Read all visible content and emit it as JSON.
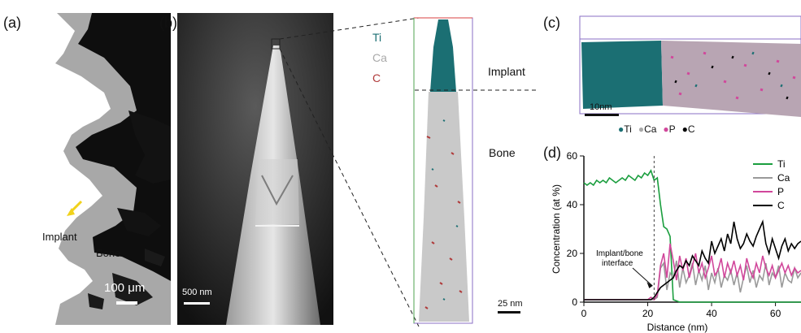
{
  "figure": {
    "panels": {
      "a": {
        "label": "(a)",
        "implant_label": "Implant",
        "bone_label": "Bone",
        "scale_bar": "100 μm"
      },
      "b": {
        "label": "(b)",
        "sem_scale_bar": "500 nm",
        "apt_scale_bar": "25 nm",
        "legend": [
          {
            "name": "Ti",
            "color": "#1b6f73"
          },
          {
            "name": "Ca",
            "color": "#a9a9a9"
          },
          {
            "name": "C",
            "color": "#b03a3a"
          }
        ],
        "implant_label": "Implant",
        "bone_label": "Bone"
      },
      "c": {
        "label": "(c)",
        "scale_bar": "10nm",
        "legend": [
          {
            "name": "Ti",
            "color": "#1b6f73"
          },
          {
            "name": "Ca",
            "color": "#a9a9a9"
          },
          {
            "name": "P",
            "color": "#d1479b"
          },
          {
            "name": "C",
            "color": "#000000"
          }
        ]
      },
      "d": {
        "label": "(d)"
      }
    }
  },
  "chart_data": {
    "type": "line",
    "title": "",
    "xlabel": "Distance (nm)",
    "ylabel": "Concentration (at %)",
    "xlim": [
      0,
      68
    ],
    "ylim": [
      0,
      60
    ],
    "xticks": [
      0,
      20,
      40,
      60
    ],
    "yticks": [
      0,
      20,
      40,
      60
    ],
    "grid": false,
    "legend_position": "top-right",
    "annotation": {
      "text": "Implant/bone interface",
      "x": 22
    },
    "series": [
      {
        "name": "Ti",
        "color": "#1a9e3e",
        "x": [
          0,
          1,
          2,
          3,
          4,
          5,
          6,
          7,
          8,
          9,
          10,
          11,
          12,
          13,
          14,
          15,
          16,
          17,
          18,
          19,
          20,
          21,
          22,
          23,
          24,
          25,
          26,
          27,
          28,
          30,
          35,
          40,
          45,
          50,
          55,
          60,
          65,
          68
        ],
        "y": [
          49,
          48,
          49,
          48,
          50,
          49,
          50,
          49,
          51,
          50,
          49,
          50,
          51,
          50,
          52,
          51,
          50,
          52,
          51,
          53,
          52,
          54,
          50,
          51,
          40,
          31,
          30,
          27,
          1,
          0,
          0,
          0,
          0,
          0,
          0,
          0,
          0,
          0
        ]
      },
      {
        "name": "Ca",
        "color": "#9a9a9a",
        "x": [
          0,
          5,
          10,
          15,
          20,
          21,
          22,
          23,
          24,
          25,
          26,
          27,
          28,
          29,
          30,
          31,
          32,
          33,
          34,
          35,
          36,
          37,
          38,
          39,
          40,
          41,
          42,
          43,
          44,
          45,
          46,
          47,
          48,
          49,
          50,
          51,
          52,
          53,
          54,
          55,
          56,
          57,
          58,
          59,
          60,
          61,
          62,
          63,
          64,
          65,
          66,
          67,
          68
        ],
        "y": [
          1,
          1,
          1,
          1,
          1,
          1,
          1,
          2,
          14,
          16,
          5,
          12,
          10,
          17,
          6,
          14,
          8,
          11,
          16,
          7,
          13,
          9,
          15,
          5,
          12,
          8,
          14,
          6,
          11,
          9,
          13,
          7,
          12,
          4,
          10,
          15,
          8,
          13,
          6,
          11,
          9,
          16,
          7,
          12,
          10,
          15,
          6,
          12,
          9,
          8,
          14,
          10,
          12
        ]
      },
      {
        "name": "P",
        "color": "#d1479b",
        "x": [
          0,
          5,
          10,
          15,
          20,
          21,
          22,
          23,
          24,
          25,
          26,
          27,
          28,
          29,
          30,
          31,
          32,
          33,
          34,
          35,
          36,
          37,
          38,
          39,
          40,
          41,
          42,
          43,
          44,
          45,
          46,
          47,
          48,
          49,
          50,
          51,
          52,
          53,
          54,
          55,
          56,
          57,
          58,
          59,
          60,
          61,
          62,
          63,
          64,
          65,
          66,
          67,
          68
        ],
        "y": [
          1,
          1,
          1,
          1,
          1,
          2,
          1,
          3,
          15,
          20,
          10,
          24,
          17,
          9,
          19,
          13,
          18,
          10,
          15,
          20,
          12,
          16,
          10,
          14,
          19,
          11,
          13,
          18,
          10,
          16,
          12,
          17,
          11,
          15,
          9,
          18,
          13,
          10,
          16,
          12,
          19,
          14,
          11,
          15,
          10,
          13,
          16,
          12,
          15,
          11,
          14,
          12,
          13
        ]
      },
      {
        "name": "C",
        "color": "#000000",
        "x": [
          0,
          5,
          10,
          15,
          20,
          21,
          22,
          23,
          24,
          25,
          26,
          27,
          28,
          29,
          30,
          31,
          32,
          33,
          34,
          35,
          36,
          37,
          38,
          39,
          40,
          41,
          42,
          43,
          44,
          45,
          46,
          47,
          48,
          49,
          50,
          51,
          52,
          53,
          54,
          55,
          56,
          57,
          58,
          59,
          60,
          61,
          62,
          63,
          64,
          65,
          66,
          67,
          68
        ],
        "y": [
          1,
          1,
          1,
          1,
          1,
          1,
          2,
          4,
          6,
          7,
          8,
          9,
          10,
          13,
          15,
          14,
          17,
          15,
          19,
          17,
          15,
          21,
          18,
          16,
          25,
          20,
          23,
          26,
          21,
          28,
          24,
          33,
          26,
          22,
          24,
          28,
          25,
          23,
          27,
          30,
          33,
          24,
          20,
          26,
          22,
          18,
          23,
          26,
          21,
          24,
          22,
          24,
          25
        ]
      }
    ]
  }
}
